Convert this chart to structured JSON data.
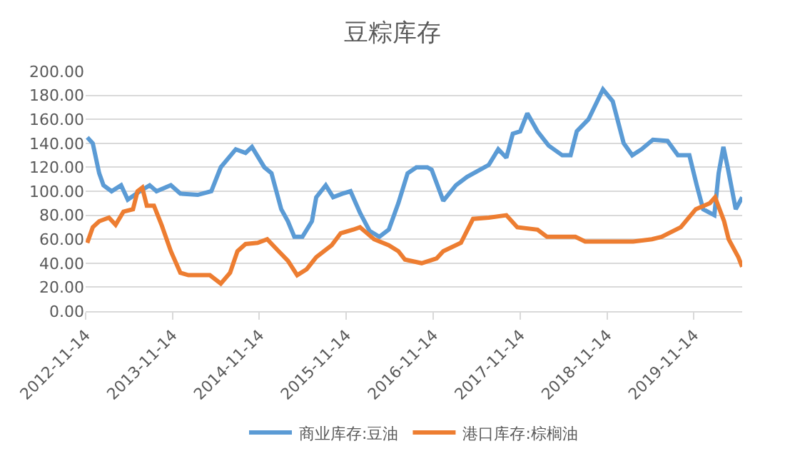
{
  "chart_data": {
    "type": "line",
    "title": "豆粽库存",
    "ylim": [
      0,
      200
    ],
    "yticks": [
      {
        "value": 0,
        "label": "0.00"
      },
      {
        "value": 20,
        "label": "20.00"
      },
      {
        "value": 40,
        "label": "40.00"
      },
      {
        "value": 60,
        "label": "60.00"
      },
      {
        "value": 80,
        "label": "80.00"
      },
      {
        "value": 100,
        "label": "100.00"
      },
      {
        "value": 120,
        "label": "120.00"
      },
      {
        "value": 140,
        "label": "140.00"
      },
      {
        "value": 160,
        "label": "160.00"
      },
      {
        "value": 180,
        "label": "180.00"
      },
      {
        "value": 200,
        "label": "200.00"
      }
    ],
    "xlim": [
      "2012-11-14",
      "2020-06-04"
    ],
    "xticks": [
      {
        "value": "2012-11-14",
        "label": "2012-11-14"
      },
      {
        "value": "2013-11-14",
        "label": "2013-11-14"
      },
      {
        "value": "2014-11-14",
        "label": "2014-11-14"
      },
      {
        "value": "2015-11-14",
        "label": "2015-11-14"
      },
      {
        "value": "2016-11-14",
        "label": "2016-11-14"
      },
      {
        "value": "2017-11-14",
        "label": "2017-11-14"
      },
      {
        "value": "2018-11-14",
        "label": "2018-11-14"
      },
      {
        "value": "2019-11-14",
        "label": "2019-11-14"
      }
    ],
    "grid": "y",
    "legend": "bottom",
    "marker": "none",
    "line_style": "solid",
    "series": [
      {
        "name": "商业库存:豆油",
        "color": "#5b9bd5",
        "x": [
          "2012-11-21",
          "2012-12-14",
          "2013-01-10",
          "2013-01-28",
          "2013-03-03",
          "2013-04-12",
          "2013-05-10",
          "2013-06-30",
          "2013-08-10",
          "2013-09-08",
          "2013-11-07",
          "2013-12-17",
          "2014-02-28",
          "2014-04-26",
          "2014-06-05",
          "2014-08-07",
          "2014-09-17",
          "2014-10-14",
          "2014-12-05",
          "2015-01-04",
          "2015-02-14",
          "2015-03-14",
          "2015-04-10",
          "2015-05-14",
          "2015-06-23",
          "2015-07-11",
          "2015-08-20",
          "2015-09-20",
          "2015-10-29",
          "2015-12-02",
          "2016-01-11",
          "2016-02-20",
          "2016-04-01",
          "2016-05-11",
          "2016-06-20",
          "2016-07-29",
          "2016-09-04",
          "2016-10-20",
          "2016-11-07",
          "2016-12-26",
          "2017-02-17",
          "2017-04-05",
          "2017-05-29",
          "2017-07-05",
          "2017-08-14",
          "2017-09-17",
          "2017-10-14",
          "2017-11-14",
          "2017-12-14",
          "2018-01-26",
          "2018-03-14",
          "2018-05-10",
          "2018-06-14",
          "2018-07-10",
          "2018-08-28",
          "2018-10-28",
          "2018-12-08",
          "2019-01-23",
          "2019-02-28",
          "2019-04-08",
          "2019-05-26",
          "2019-07-26",
          "2019-09-08",
          "2019-10-26",
          "2019-11-26",
          "2019-12-23",
          "2020-02-08",
          "2020-02-26",
          "2020-03-17",
          "2020-04-04",
          "2020-05-08",
          "2020-06-04"
        ],
        "values": [
          145,
          140,
          115,
          105,
          100,
          105,
          93,
          100,
          105,
          100,
          105,
          98,
          97,
          100,
          120,
          135,
          132,
          137,
          120,
          115,
          85,
          75,
          62,
          62,
          75,
          95,
          105,
          95,
          98,
          100,
          82,
          67,
          62,
          68,
          90,
          115,
          120,
          120,
          118,
          92,
          105,
          112,
          118,
          122,
          135,
          128,
          148,
          150,
          165,
          150,
          138,
          130,
          130,
          150,
          160,
          185,
          175,
          140,
          130,
          135,
          143,
          142,
          130,
          130,
          105,
          85,
          80,
          115,
          137,
          120,
          85,
          95
        ]
      },
      {
        "name": "港口库存:棕榈油",
        "color": "#ed7d31",
        "x": [
          "2012-11-21",
          "2012-12-14",
          "2013-01-10",
          "2013-02-20",
          "2013-03-20",
          "2013-04-22",
          "2013-06-01",
          "2013-06-20",
          "2013-07-10",
          "2013-07-29",
          "2013-08-28",
          "2013-09-29",
          "2013-11-07",
          "2013-12-17",
          "2014-01-20",
          "2014-02-28",
          "2014-04-20",
          "2014-06-05",
          "2014-07-14",
          "2014-08-14",
          "2014-09-17",
          "2014-11-07",
          "2014-12-17",
          "2015-02-03",
          "2015-03-14",
          "2015-04-22",
          "2015-06-01",
          "2015-07-11",
          "2015-09-14",
          "2015-10-22",
          "2015-12-14",
          "2016-01-11",
          "2016-03-10",
          "2016-05-11",
          "2016-06-20",
          "2016-07-18",
          "2016-09-26",
          "2016-11-28",
          "2016-12-26",
          "2017-03-10",
          "2017-04-30",
          "2017-07-05",
          "2017-09-17",
          "2017-11-02",
          "2018-01-26",
          "2018-03-07",
          "2018-07-04",
          "2018-08-14",
          "2018-12-14",
          "2019-03-04",
          "2019-05-22",
          "2019-07-01",
          "2019-09-20",
          "2019-11-22",
          "2020-01-20",
          "2020-02-11",
          "2020-03-20",
          "2020-04-08",
          "2020-05-19",
          "2020-06-04"
        ],
        "values": [
          57,
          70,
          75,
          78,
          72,
          83,
          85,
          100,
          103,
          88,
          88,
          72,
          50,
          32,
          30,
          30,
          30,
          23,
          32,
          50,
          56,
          57,
          60,
          50,
          42,
          30,
          35,
          45,
          55,
          65,
          68,
          70,
          60,
          55,
          50,
          43,
          40,
          44,
          50,
          57,
          77,
          78,
          80,
          70,
          68,
          62,
          62,
          58,
          58,
          58,
          60,
          62,
          70,
          85,
          90,
          95,
          75,
          60,
          45,
          37
        ]
      }
    ]
  }
}
